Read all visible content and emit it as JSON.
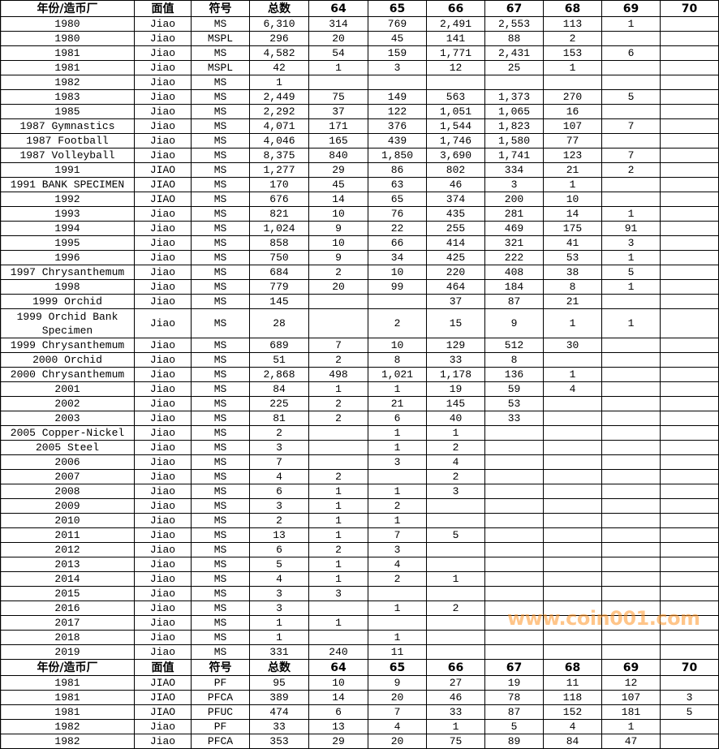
{
  "watermark": "www.coin001.com",
  "columns": [
    165,
    70,
    72,
    73,
    73,
    72,
    72,
    72,
    72,
    72,
    72
  ],
  "sections": [
    {
      "header": [
        "年份/造币厂",
        "面值",
        "符号",
        "总数",
        "64",
        "65",
        "66",
        "67",
        "68",
        "69",
        "70"
      ],
      "rows": [
        [
          "1980",
          "Jiao",
          "MS",
          "6,310",
          "314",
          "769",
          "2,491",
          "2,553",
          "113",
          "1",
          ""
        ],
        [
          "1980",
          "Jiao",
          "MSPL",
          "296",
          "20",
          "45",
          "141",
          "88",
          "2",
          "",
          ""
        ],
        [
          "1981",
          "Jiao",
          "MS",
          "4,582",
          "54",
          "159",
          "1,771",
          "2,431",
          "153",
          "6",
          ""
        ],
        [
          "1981",
          "Jiao",
          "MSPL",
          "42",
          "1",
          "3",
          "12",
          "25",
          "1",
          "",
          ""
        ],
        [
          "1982",
          "Jiao",
          "MS",
          "1",
          "",
          "",
          "",
          "",
          "",
          "",
          ""
        ],
        [
          "1983",
          "Jiao",
          "MS",
          "2,449",
          "75",
          "149",
          "563",
          "1,373",
          "270",
          "5",
          ""
        ],
        [
          "1985",
          "Jiao",
          "MS",
          "2,292",
          "37",
          "122",
          "1,051",
          "1,065",
          "16",
          "",
          ""
        ],
        [
          "1987 Gymnastics",
          "Jiao",
          "MS",
          "4,071",
          "171",
          "376",
          "1,544",
          "1,823",
          "107",
          "7",
          ""
        ],
        [
          "1987 Football",
          "Jiao",
          "MS",
          "4,046",
          "165",
          "439",
          "1,746",
          "1,580",
          "77",
          "",
          ""
        ],
        [
          "1987 Volleyball",
          "Jiao",
          "MS",
          "8,375",
          "840",
          "1,850",
          "3,690",
          "1,741",
          "123",
          "7",
          ""
        ],
        [
          "1991",
          "JIAO",
          "MS",
          "1,277",
          "29",
          "86",
          "802",
          "334",
          "21",
          "2",
          ""
        ],
        [
          "1991 BANK SPECIMEN",
          "JIAO",
          "MS",
          "170",
          "45",
          "63",
          "46",
          "3",
          "1",
          "",
          ""
        ],
        [
          "1992",
          "JIAO",
          "MS",
          "676",
          "14",
          "65",
          "374",
          "200",
          "10",
          "",
          ""
        ],
        [
          "1993",
          "Jiao",
          "MS",
          "821",
          "10",
          "76",
          "435",
          "281",
          "14",
          "1",
          ""
        ],
        [
          "1994",
          "Jiao",
          "MS",
          "1,024",
          "9",
          "22",
          "255",
          "469",
          "175",
          "91",
          ""
        ],
        [
          "1995",
          "Jiao",
          "MS",
          "858",
          "10",
          "66",
          "414",
          "321",
          "41",
          "3",
          ""
        ],
        [
          "1996",
          "Jiao",
          "MS",
          "750",
          "9",
          "34",
          "425",
          "222",
          "53",
          "1",
          ""
        ],
        [
          "1997 Chrysanthemum",
          "Jiao",
          "MS",
          "684",
          "2",
          "10",
          "220",
          "408",
          "38",
          "5",
          ""
        ],
        [
          "1998",
          "Jiao",
          "MS",
          "779",
          "20",
          "99",
          "464",
          "184",
          "8",
          "1",
          ""
        ],
        [
          "1999 Orchid",
          "Jiao",
          "MS",
          "145",
          "",
          "",
          "37",
          "87",
          "21",
          "",
          ""
        ],
        [
          "1999 Orchid Bank Specimen",
          "Jiao",
          "MS",
          "28",
          "",
          "2",
          "15",
          "9",
          "1",
          "1",
          ""
        ],
        [
          "1999 Chrysanthemum",
          "Jiao",
          "MS",
          "689",
          "7",
          "10",
          "129",
          "512",
          "30",
          "",
          ""
        ],
        [
          "2000 Orchid",
          "Jiao",
          "MS",
          "51",
          "2",
          "8",
          "33",
          "8",
          "",
          "",
          ""
        ],
        [
          "2000 Chrysanthemum",
          "Jiao",
          "MS",
          "2,868",
          "498",
          "1,021",
          "1,178",
          "136",
          "1",
          "",
          ""
        ],
        [
          "2001",
          "Jiao",
          "MS",
          "84",
          "1",
          "1",
          "19",
          "59",
          "4",
          "",
          ""
        ],
        [
          "2002",
          "Jiao",
          "MS",
          "225",
          "2",
          "21",
          "145",
          "53",
          "",
          "",
          ""
        ],
        [
          "2003",
          "Jiao",
          "MS",
          "81",
          "2",
          "6",
          "40",
          "33",
          "",
          "",
          ""
        ],
        [
          "2005 Copper-Nickel",
          "Jiao",
          "MS",
          "2",
          "",
          "1",
          "1",
          "",
          "",
          "",
          ""
        ],
        [
          "2005 Steel",
          "Jiao",
          "MS",
          "3",
          "",
          "1",
          "2",
          "",
          "",
          "",
          ""
        ],
        [
          "2006",
          "Jiao",
          "MS",
          "7",
          "",
          "3",
          "4",
          "",
          "",
          "",
          ""
        ],
        [
          "2007",
          "Jiao",
          "MS",
          "4",
          "2",
          "",
          "2",
          "",
          "",
          "",
          ""
        ],
        [
          "2008",
          "Jiao",
          "MS",
          "6",
          "1",
          "1",
          "3",
          "",
          "",
          "",
          ""
        ],
        [
          "2009",
          "Jiao",
          "MS",
          "3",
          "1",
          "2",
          "",
          "",
          "",
          "",
          ""
        ],
        [
          "2010",
          "Jiao",
          "MS",
          "2",
          "1",
          "1",
          "",
          "",
          "",
          "",
          ""
        ],
        [
          "2011",
          "Jiao",
          "MS",
          "13",
          "1",
          "7",
          "5",
          "",
          "",
          "",
          ""
        ],
        [
          "2012",
          "Jiao",
          "MS",
          "6",
          "2",
          "3",
          "",
          "",
          "",
          "",
          ""
        ],
        [
          "2013",
          "Jiao",
          "MS",
          "5",
          "1",
          "4",
          "",
          "",
          "",
          "",
          ""
        ],
        [
          "2014",
          "Jiao",
          "MS",
          "4",
          "1",
          "2",
          "1",
          "",
          "",
          "",
          ""
        ],
        [
          "2015",
          "Jiao",
          "MS",
          "3",
          "3",
          "",
          "",
          "",
          "",
          "",
          ""
        ],
        [
          "2016",
          "Jiao",
          "MS",
          "3",
          "",
          "1",
          "2",
          "",
          "",
          "",
          ""
        ],
        [
          "2017",
          "Jiao",
          "MS",
          "1",
          "1",
          "",
          "",
          "",
          "",
          "",
          ""
        ],
        [
          "2018",
          "Jiao",
          "MS",
          "1",
          "",
          "1",
          "",
          "",
          "",
          "",
          ""
        ],
        [
          "2019",
          "Jiao",
          "MS",
          "331",
          "240",
          "11",
          "",
          "",
          "",
          "",
          ""
        ]
      ]
    },
    {
      "header": [
        "年份/造币厂",
        "面值",
        "符号",
        "总数",
        "64",
        "65",
        "66",
        "67",
        "68",
        "69",
        "70"
      ],
      "rows": [
        [
          "1981",
          "JIAO",
          "PF",
          "95",
          "10",
          "9",
          "27",
          "19",
          "11",
          "12",
          ""
        ],
        [
          "1981",
          "JIAO",
          "PFCA",
          "389",
          "14",
          "20",
          "46",
          "78",
          "118",
          "107",
          "3"
        ],
        [
          "1981",
          "JIAO",
          "PFUC",
          "474",
          "6",
          "7",
          "33",
          "87",
          "152",
          "181",
          "5"
        ],
        [
          "1982",
          "Jiao",
          "PF",
          "33",
          "13",
          "4",
          "1",
          "5",
          "4",
          "1",
          ""
        ],
        [
          "1982",
          "Jiao",
          "PFCA",
          "353",
          "29",
          "20",
          "75",
          "89",
          "84",
          "47",
          ""
        ]
      ]
    }
  ]
}
